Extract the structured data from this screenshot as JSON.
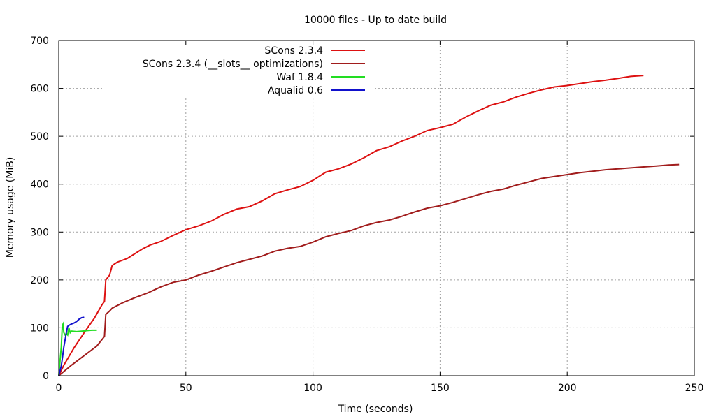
{
  "chart_data": {
    "type": "line",
    "title": "10000 files - Up to date build",
    "xlabel": "Time (seconds)",
    "ylabel": "Memory usage (MiB)",
    "xlim": [
      0,
      250
    ],
    "ylim": [
      0,
      700
    ],
    "xticks": [
      0,
      50,
      100,
      150,
      200,
      250
    ],
    "yticks": [
      0,
      100,
      200,
      300,
      400,
      500,
      600,
      700
    ],
    "grid": true,
    "legend_position": "top-center",
    "series": [
      {
        "name": "SCons 2.3.4",
        "color": "#dd1111",
        "points": [
          [
            0,
            0
          ],
          [
            2,
            22
          ],
          [
            4,
            40
          ],
          [
            6,
            58
          ],
          [
            10,
            90
          ],
          [
            14,
            120
          ],
          [
            17,
            148
          ],
          [
            18,
            155
          ],
          [
            18.5,
            200
          ],
          [
            20,
            210
          ],
          [
            21,
            230
          ],
          [
            23,
            237
          ],
          [
            27,
            245
          ],
          [
            30,
            255
          ],
          [
            33,
            265
          ],
          [
            36,
            273
          ],
          [
            40,
            280
          ],
          [
            45,
            293
          ],
          [
            50,
            305
          ],
          [
            55,
            313
          ],
          [
            60,
            323
          ],
          [
            65,
            337
          ],
          [
            70,
            348
          ],
          [
            75,
            353
          ],
          [
            80,
            365
          ],
          [
            85,
            380
          ],
          [
            90,
            388
          ],
          [
            95,
            395
          ],
          [
            100,
            408
          ],
          [
            105,
            425
          ],
          [
            110,
            432
          ],
          [
            115,
            442
          ],
          [
            120,
            455
          ],
          [
            125,
            470
          ],
          [
            130,
            478
          ],
          [
            135,
            490
          ],
          [
            140,
            500
          ],
          [
            145,
            512
          ],
          [
            150,
            518
          ],
          [
            155,
            525
          ],
          [
            160,
            540
          ],
          [
            165,
            553
          ],
          [
            170,
            565
          ],
          [
            175,
            572
          ],
          [
            180,
            582
          ],
          [
            185,
            590
          ],
          [
            190,
            597
          ],
          [
            195,
            603
          ],
          [
            200,
            606
          ],
          [
            205,
            610
          ],
          [
            210,
            614
          ],
          [
            215,
            617
          ],
          [
            220,
            621
          ],
          [
            225,
            625
          ],
          [
            230,
            627
          ]
        ]
      },
      {
        "name": "SCons 2.3.4 (__slots__ optimizations)",
        "color": "#a11c1c",
        "points": [
          [
            0,
            0
          ],
          [
            5,
            22
          ],
          [
            10,
            42
          ],
          [
            15,
            62
          ],
          [
            18,
            82
          ],
          [
            18.5,
            128
          ],
          [
            20,
            135
          ],
          [
            21,
            141
          ],
          [
            25,
            152
          ],
          [
            30,
            163
          ],
          [
            35,
            173
          ],
          [
            40,
            185
          ],
          [
            45,
            195
          ],
          [
            50,
            200
          ],
          [
            55,
            210
          ],
          [
            60,
            218
          ],
          [
            65,
            227
          ],
          [
            70,
            236
          ],
          [
            75,
            243
          ],
          [
            80,
            250
          ],
          [
            85,
            260
          ],
          [
            90,
            266
          ],
          [
            95,
            270
          ],
          [
            100,
            279
          ],
          [
            105,
            290
          ],
          [
            110,
            297
          ],
          [
            115,
            303
          ],
          [
            120,
            313
          ],
          [
            125,
            320
          ],
          [
            130,
            325
          ],
          [
            135,
            333
          ],
          [
            140,
            342
          ],
          [
            145,
            350
          ],
          [
            150,
            355
          ],
          [
            155,
            362
          ],
          [
            160,
            370
          ],
          [
            165,
            378
          ],
          [
            170,
            385
          ],
          [
            175,
            390
          ],
          [
            180,
            398
          ],
          [
            185,
            405
          ],
          [
            190,
            412
          ],
          [
            195,
            416
          ],
          [
            200,
            420
          ],
          [
            205,
            424
          ],
          [
            210,
            427
          ],
          [
            215,
            430
          ],
          [
            220,
            432
          ],
          [
            225,
            434
          ],
          [
            230,
            436
          ],
          [
            235,
            438
          ],
          [
            240,
            440
          ],
          [
            244,
            441
          ]
        ]
      },
      {
        "name": "Waf 1.8.4",
        "color": "#22dd22",
        "points": [
          [
            0,
            0
          ],
          [
            0.5,
            30
          ],
          [
            1,
            60
          ],
          [
            1.4,
            105
          ],
          [
            1.7,
            108
          ],
          [
            2,
            90
          ],
          [
            2.5,
            85
          ],
          [
            3,
            88
          ],
          [
            3.5,
            85
          ],
          [
            4,
            100
          ],
          [
            4.5,
            90
          ],
          [
            5,
            93
          ],
          [
            7,
            92
          ],
          [
            9,
            93
          ],
          [
            11,
            94
          ],
          [
            13,
            95
          ],
          [
            15,
            95
          ]
        ]
      },
      {
        "name": "Aqualid 0.6",
        "color": "#1111cc",
        "points": [
          [
            0,
            0
          ],
          [
            0.5,
            10
          ],
          [
            1,
            20
          ],
          [
            1.5,
            40
          ],
          [
            2,
            60
          ],
          [
            2.5,
            75
          ],
          [
            3,
            90
          ],
          [
            3.5,
            103
          ],
          [
            4,
            105
          ],
          [
            5,
            108
          ],
          [
            6,
            110
          ],
          [
            7,
            113
          ],
          [
            8,
            118
          ],
          [
            9,
            121
          ],
          [
            10,
            122
          ]
        ]
      }
    ]
  }
}
